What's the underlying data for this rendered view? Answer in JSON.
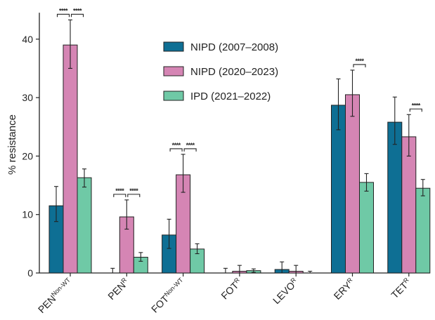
{
  "chart_data": {
    "type": "bar",
    "ylabel": "% resistance",
    "ylim": [
      0,
      45
    ],
    "yticks": [
      0,
      10,
      20,
      30,
      40
    ],
    "grid": false,
    "legend_position": "top-center",
    "categories": [
      {
        "base": "PEN",
        "sup": "Non-WT"
      },
      {
        "base": "PEN",
        "sup": "R"
      },
      {
        "base": "FOT",
        "sup": "Non-WT"
      },
      {
        "base": "FOT",
        "sup": "R"
      },
      {
        "base": "LEVO",
        "sup": "R"
      },
      {
        "base": "ERY",
        "sup": "R"
      },
      {
        "base": "TET",
        "sup": "R"
      }
    ],
    "series": [
      {
        "name": "NIPD (2007–2008)",
        "color": "#0e6f94",
        "values": [
          11.5,
          0,
          6.5,
          0,
          0.6,
          28.7,
          25.8
        ],
        "err_low": [
          8.8,
          0,
          4.2,
          0,
          0,
          24.5,
          22.0
        ],
        "err_high": [
          14.8,
          0.8,
          9.2,
          0.8,
          1.9,
          33.2,
          30.1
        ]
      },
      {
        "name": "NIPD (2020–2023)",
        "color": "#d585b4",
        "values": [
          39.0,
          9.6,
          16.8,
          0.3,
          0.3,
          30.5,
          23.3
        ],
        "err_low": [
          35.0,
          7.5,
          13.8,
          0,
          0,
          26.8,
          20.0
        ],
        "err_high": [
          43.3,
          12.5,
          20.3,
          1.3,
          1.3,
          34.7,
          27.1
        ]
      },
      {
        "name": "IPD (2021–2022)",
        "color": "#6fc9a6",
        "values": [
          16.3,
          2.7,
          4.1,
          0.4,
          0,
          15.5,
          14.5
        ],
        "err_low": [
          14.7,
          2.0,
          3.3,
          0.1,
          0,
          14.0,
          13.2
        ],
        "err_high": [
          17.8,
          3.5,
          5.0,
          0.7,
          0.3,
          17.0,
          16.0
        ]
      }
    ],
    "annotations": [
      {
        "category": 0,
        "from_series": 0,
        "to_series": 1,
        "label": "****"
      },
      {
        "category": 0,
        "from_series": 1,
        "to_series": 2,
        "label": "****"
      },
      {
        "category": 1,
        "from_series": 0,
        "to_series": 1,
        "label": "****"
      },
      {
        "category": 1,
        "from_series": 1,
        "to_series": 2,
        "label": "****"
      },
      {
        "category": 2,
        "from_series": 0,
        "to_series": 1,
        "label": "****"
      },
      {
        "category": 2,
        "from_series": 1,
        "to_series": 2,
        "label": "****"
      },
      {
        "category": 5,
        "from_series": 1,
        "to_series": 2,
        "label": "****"
      },
      {
        "category": 6,
        "from_series": 1,
        "to_series": 2,
        "label": "****"
      }
    ]
  }
}
